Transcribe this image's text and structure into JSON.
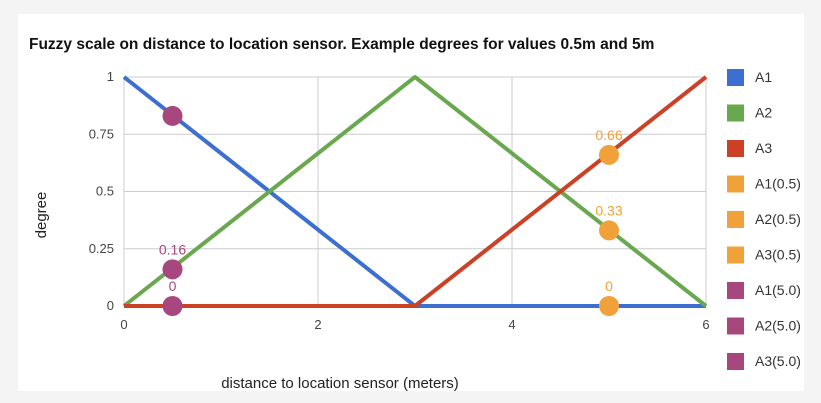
{
  "chart_data": {
    "type": "line",
    "title": "Fuzzy scale on distance to location sensor. Example degrees for values 0.5m and 5m",
    "xlabel": "distance to location sensor (meters)",
    "ylabel": "degree",
    "xlim": [
      0,
      6
    ],
    "ylim": [
      0,
      1
    ],
    "x_ticks": [
      "0",
      "2",
      "4",
      "6"
    ],
    "y_ticks": [
      "0",
      "0.25",
      "0.5",
      "0.75",
      "1"
    ],
    "grid": true,
    "legend_position": "right",
    "series": [
      {
        "name": "A1",
        "color": "#3c6fd0",
        "kind": "line",
        "points": [
          [
            0,
            1
          ],
          [
            3,
            0
          ],
          [
            6,
            0
          ]
        ]
      },
      {
        "name": "A2",
        "color": "#6aa84f",
        "kind": "line",
        "points": [
          [
            0,
            0
          ],
          [
            3,
            1
          ],
          [
            6,
            0
          ]
        ]
      },
      {
        "name": "A3",
        "color": "#cc4125",
        "kind": "line",
        "points": [
          [
            0,
            0
          ],
          [
            3,
            0
          ],
          [
            6,
            1
          ]
        ]
      },
      {
        "name": "A1(0.5)",
        "color": "#f0a13a",
        "kind": "point",
        "points": [
          [
            5,
            0
          ]
        ],
        "labels": [
          "0"
        ]
      },
      {
        "name": "A2(0.5)",
        "color": "#f0a13a",
        "kind": "point",
        "points": [
          [
            5,
            0.33
          ]
        ],
        "labels": [
          "0.33"
        ]
      },
      {
        "name": "A3(0.5)",
        "color": "#f0a13a",
        "kind": "point",
        "points": [
          [
            5,
            0.66
          ]
        ],
        "labels": [
          "0.66"
        ]
      },
      {
        "name": "A1(5.0)",
        "color": "#a8467e",
        "kind": "point",
        "points": [
          [
            0.5,
            0.83
          ]
        ],
        "labels": [
          ""
        ]
      },
      {
        "name": "A2(5.0)",
        "color": "#a8467e",
        "kind": "point",
        "points": [
          [
            0.5,
            0.16
          ]
        ],
        "labels": [
          "0.16"
        ]
      },
      {
        "name": "A3(5.0)",
        "color": "#a8467e",
        "kind": "point",
        "points": [
          [
            0.5,
            0
          ]
        ],
        "labels": [
          "0"
        ]
      }
    ]
  }
}
